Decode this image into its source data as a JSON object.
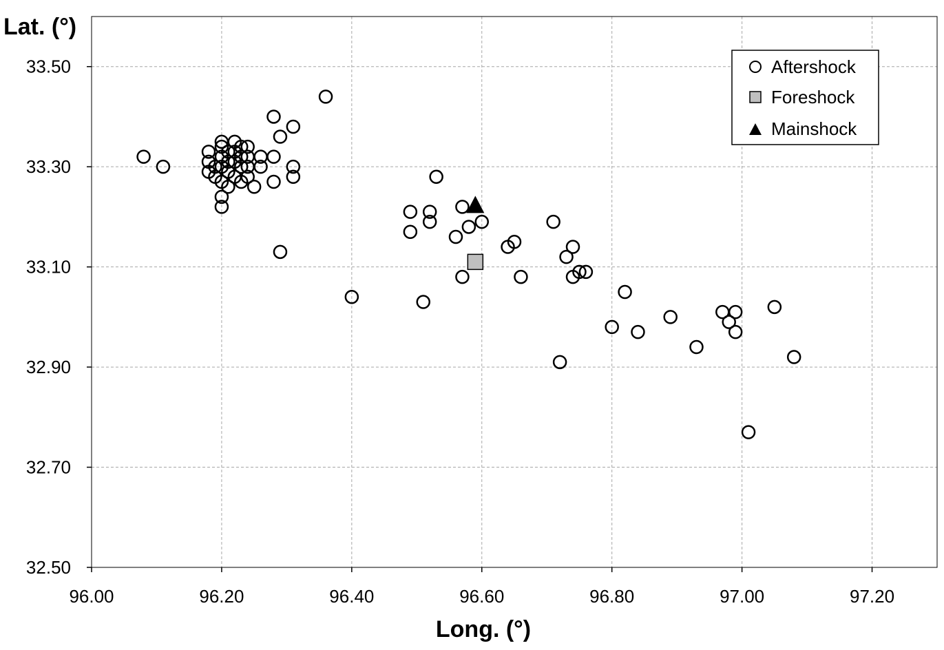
{
  "chart_data": {
    "type": "scatter",
    "title": "",
    "xlabel": "Long. (°)",
    "ylabel": "Lat. (°)",
    "xlim": [
      96.0,
      97.3
    ],
    "ylim": [
      32.5,
      33.6
    ],
    "x_ticks": [
      "96.00",
      "96.20",
      "96.40",
      "96.60",
      "96.80",
      "97.00",
      "97.20"
    ],
    "y_ticks": [
      "32.50",
      "32.70",
      "32.90",
      "33.10",
      "33.30",
      "33.50"
    ],
    "grid": true,
    "legend_position": "top-right",
    "series": [
      {
        "name": "Aftershock",
        "marker": "open-circle",
        "points": [
          [
            96.08,
            33.32
          ],
          [
            96.11,
            33.3
          ],
          [
            96.18,
            33.33
          ],
          [
            96.18,
            33.31
          ],
          [
            96.18,
            33.29
          ],
          [
            96.19,
            33.28
          ],
          [
            96.19,
            33.3
          ],
          [
            96.2,
            33.35
          ],
          [
            96.2,
            33.34
          ],
          [
            96.2,
            33.32
          ],
          [
            96.2,
            33.3
          ],
          [
            96.2,
            33.27
          ],
          [
            96.2,
            33.24
          ],
          [
            96.2,
            33.22
          ],
          [
            96.21,
            33.33
          ],
          [
            96.21,
            33.31
          ],
          [
            96.21,
            33.29
          ],
          [
            96.21,
            33.26
          ],
          [
            96.22,
            33.35
          ],
          [
            96.22,
            33.33
          ],
          [
            96.22,
            33.31
          ],
          [
            96.22,
            33.28
          ],
          [
            96.23,
            33.34
          ],
          [
            96.23,
            33.32
          ],
          [
            96.23,
            33.3
          ],
          [
            96.23,
            33.27
          ],
          [
            96.24,
            33.34
          ],
          [
            96.24,
            33.32
          ],
          [
            96.24,
            33.3
          ],
          [
            96.24,
            33.28
          ],
          [
            96.25,
            33.26
          ],
          [
            96.26,
            33.32
          ],
          [
            96.26,
            33.3
          ],
          [
            96.28,
            33.4
          ],
          [
            96.28,
            33.32
          ],
          [
            96.28,
            33.27
          ],
          [
            96.29,
            33.36
          ],
          [
            96.29,
            33.13
          ],
          [
            96.31,
            33.38
          ],
          [
            96.31,
            33.3
          ],
          [
            96.31,
            33.28
          ],
          [
            96.36,
            33.44
          ],
          [
            96.4,
            33.04
          ],
          [
            96.49,
            33.21
          ],
          [
            96.49,
            33.17
          ],
          [
            96.51,
            33.03
          ],
          [
            96.52,
            33.21
          ],
          [
            96.52,
            33.19
          ],
          [
            96.53,
            33.28
          ],
          [
            96.56,
            33.16
          ],
          [
            96.57,
            33.22
          ],
          [
            96.57,
            33.08
          ],
          [
            96.58,
            33.18
          ],
          [
            96.6,
            33.19
          ],
          [
            96.64,
            33.14
          ],
          [
            96.65,
            33.15
          ],
          [
            96.66,
            33.08
          ],
          [
            96.71,
            33.19
          ],
          [
            96.72,
            32.91
          ],
          [
            96.73,
            33.12
          ],
          [
            96.74,
            33.14
          ],
          [
            96.74,
            33.08
          ],
          [
            96.75,
            33.09
          ],
          [
            96.76,
            33.09
          ],
          [
            96.8,
            32.98
          ],
          [
            96.82,
            33.05
          ],
          [
            96.84,
            32.97
          ],
          [
            96.89,
            33.0
          ],
          [
            96.93,
            32.94
          ],
          [
            96.97,
            33.01
          ],
          [
            96.98,
            32.99
          ],
          [
            96.99,
            33.01
          ],
          [
            96.99,
            32.97
          ],
          [
            97.01,
            32.77
          ],
          [
            97.05,
            33.02
          ],
          [
            97.08,
            32.92
          ]
        ]
      },
      {
        "name": "Foreshock",
        "marker": "gray-square",
        "points": [
          [
            96.59,
            33.11
          ]
        ]
      },
      {
        "name": "Mainshock",
        "marker": "filled-triangle",
        "points": [
          [
            96.59,
            33.22
          ]
        ]
      }
    ]
  },
  "colors": {
    "grid": "#a6a6a6",
    "axis": "#000000",
    "foreshock_fill": "#bfbfbf",
    "marker_stroke": "#000000"
  }
}
